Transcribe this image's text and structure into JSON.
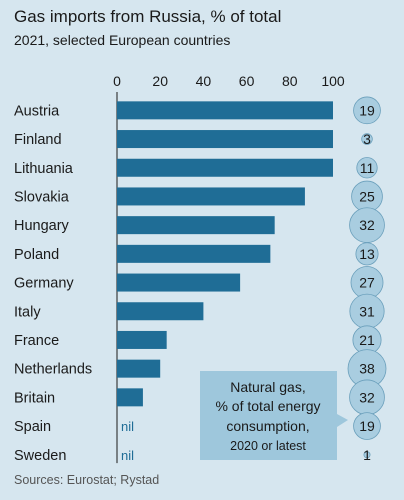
{
  "chart_data": {
    "type": "bar",
    "title": "Gas imports from Russia, % of total",
    "subtitle": "2021, selected European countries",
    "source": "Sources: Eurostat; Rystad",
    "xlim": [
      0,
      100
    ],
    "xticks": [
      "0",
      "20",
      "40",
      "60",
      "80",
      "100"
    ],
    "categories": [
      "Austria",
      "Finland",
      "Lithuania",
      "Slovakia",
      "Hungary",
      "Poland",
      "Germany",
      "Italy",
      "France",
      "Netherlands",
      "Britain",
      "Spain",
      "Sweden"
    ],
    "values": [
      100,
      100,
      100,
      87,
      73,
      71,
      57,
      40,
      23,
      20,
      12,
      0,
      0
    ],
    "value_labels": [
      "",
      "",
      "",
      "",
      "",
      "",
      "",
      "",
      "",
      "",
      "",
      "nil",
      "nil"
    ],
    "bubble_series": {
      "label_lines": [
        "Natural gas,",
        "% of total energy",
        "consumption,",
        "2020 or latest"
      ],
      "values": [
        19,
        3,
        11,
        25,
        32,
        13,
        27,
        31,
        21,
        38,
        32,
        19,
        1
      ]
    },
    "colors": {
      "background": "#d6e6ef",
      "bar": "#1f6d96",
      "bubble": "#a9cde0",
      "bubble_stroke": "#6a9fbb",
      "callout": "#9ec7dc",
      "text": "#1a1a1a",
      "nil_text": "#1f6d96",
      "source_text": "#555555"
    }
  }
}
